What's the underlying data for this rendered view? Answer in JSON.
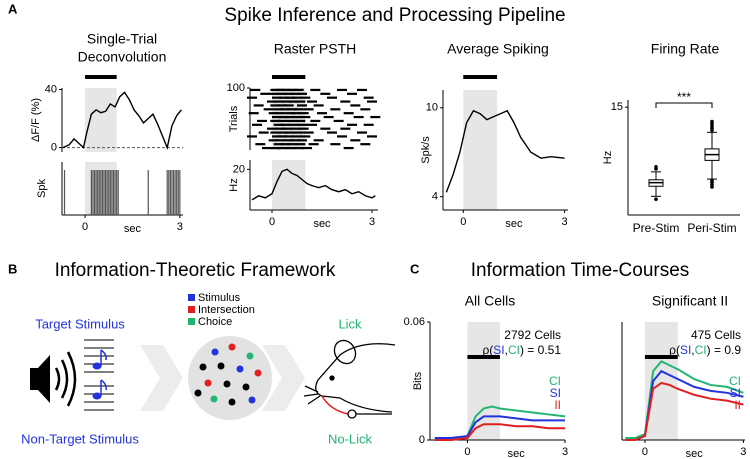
{
  "panel_labels": [
    "A",
    "B",
    "C"
  ],
  "section_titles": [
    "Spike Inference and Processing Pipeline",
    "Information-Theoretic Framework",
    "Information Time-Courses"
  ],
  "diagram": {
    "target": "Target Stimulus",
    "non_target": "Non-Target Stimulus",
    "legend": [
      "Stimulus",
      "Intersection",
      "Choice"
    ],
    "lick": "Lick",
    "no_lick": "No-Lick"
  },
  "chart_data": [
    {
      "type": "line",
      "title_lines": [
        "Single-Trial",
        "Deconvolution"
      ],
      "ylabel": "ΔF/F (%)",
      "xlim": [
        -0.73,
        3.1
      ],
      "ylim": [
        -3,
        41
      ],
      "yticks": [
        0,
        40
      ],
      "shade": [
        0,
        1
      ],
      "stim_bar": true,
      "zero_line": true,
      "x": [
        -0.7,
        -0.5,
        -0.35,
        -0.2,
        -0.05,
        0.05,
        0.2,
        0.35,
        0.5,
        0.65,
        0.8,
        0.95,
        1.1,
        1.25,
        1.4,
        1.55,
        1.7,
        1.85,
        2.0,
        2.15,
        2.3,
        2.45,
        2.6,
        2.75,
        2.9,
        3.05
      ],
      "series": [
        {
          "color": "#000000",
          "values": [
            0,
            2,
            6,
            3,
            0,
            10,
            23,
            26,
            24,
            25,
            30,
            28,
            35,
            38,
            33,
            26,
            22,
            17,
            20,
            23,
            16,
            8,
            0,
            15,
            22,
            26
          ]
        }
      ]
    },
    {
      "type": "raster",
      "ylabel": "Spk",
      "xlabel": "sec",
      "xlim": [
        -0.73,
        3.1
      ],
      "xticks": [
        0,
        3
      ],
      "shade": [
        0,
        1
      ],
      "spikes": [
        -0.65,
        0.2,
        0.25,
        0.3,
        0.35,
        0.4,
        0.45,
        0.5,
        0.55,
        0.6,
        0.65,
        0.7,
        0.75,
        0.8,
        0.85,
        0.9,
        0.95,
        1.0,
        1.05,
        2.0,
        2.6,
        2.65,
        2.7,
        2.75,
        2.8,
        2.85,
        2.9,
        2.95,
        3.0
      ]
    },
    {
      "type": "raster",
      "title": "Raster PSTH",
      "ylabel": "Trials",
      "xlim": [
        -0.66,
        3.18
      ],
      "ylim": [
        0,
        100
      ],
      "yticks": [
        100
      ],
      "shade": [
        0,
        1
      ],
      "stim_bar": true,
      "trials": [
        [
          -0.5,
          0.1,
          0.25,
          0.4,
          0.6,
          0.8,
          1.3,
          2.1,
          2.7
        ],
        [
          -0.2,
          0.05,
          0.3,
          0.5,
          0.7,
          0.9,
          1.6,
          2.4
        ],
        [
          -0.6,
          0.15,
          0.35,
          0.55,
          0.75,
          1.0,
          1.8,
          2.9
        ],
        [
          0.0,
          0.2,
          0.45,
          0.65,
          0.85,
          1.2,
          2.2,
          3.0
        ],
        [
          -0.4,
          0.1,
          0.3,
          0.5,
          0.9,
          1.4,
          2.5
        ],
        [
          -0.1,
          0.2,
          0.4,
          0.6,
          0.8,
          1.1,
          1.9,
          2.8
        ],
        [
          -0.55,
          0.05,
          0.25,
          0.55,
          0.7,
          0.95,
          1.5,
          2.3
        ],
        [
          0.15,
          0.35,
          0.5,
          0.75,
          1.0,
          1.7,
          2.6,
          3.1
        ],
        [
          -0.3,
          0.1,
          0.3,
          0.6,
          0.85,
          1.3,
          2.0
        ],
        [
          -0.45,
          0.2,
          0.4,
          0.65,
          0.9,
          1.2,
          2.4,
          2.9
        ],
        [
          0.0,
          0.25,
          0.45,
          0.7,
          0.95,
          1.6,
          2.2
        ],
        [
          -0.25,
          0.1,
          0.35,
          0.55,
          0.8,
          1.1,
          1.8,
          2.7
        ],
        [
          -0.6,
          0.15,
          0.3,
          0.5,
          0.75,
          1.0,
          2.1,
          3.0
        ],
        [
          0.05,
          0.25,
          0.5,
          0.7,
          0.9,
          1.4,
          2.5
        ],
        [
          -0.35,
          0.2,
          0.4,
          0.6,
          0.85,
          1.25,
          1.9,
          2.8
        ],
        [
          -0.15,
          0.1,
          0.3,
          0.55,
          0.8,
          1.05,
          2.3
        ]
      ]
    },
    {
      "type": "line",
      "ylabel": "Hz",
      "xlabel": "sec",
      "xlim": [
        -0.66,
        3.18
      ],
      "ylim": [
        0,
        24.6
      ],
      "yticks": [
        20
      ],
      "xticks": [
        0,
        3
      ],
      "shade": [
        0,
        1
      ],
      "x": [
        -0.6,
        -0.4,
        -0.2,
        0,
        0.15,
        0.3,
        0.45,
        0.6,
        0.75,
        0.9,
        1.05,
        1.2,
        1.4,
        1.6,
        1.8,
        2.0,
        2.2,
        2.4,
        2.6,
        2.8,
        3.0,
        3.1
      ],
      "series": [
        {
          "color": "#000000",
          "values": [
            5,
            7,
            6,
            8,
            14,
            19,
            20,
            18,
            17,
            15,
            13,
            12,
            11,
            12,
            10,
            9,
            10,
            8,
            9,
            7,
            6,
            7
          ]
        }
      ]
    },
    {
      "type": "line",
      "title": "Average Spiking",
      "ylabel": "Spk/s",
      "xlabel": "sec",
      "xlim": [
        -0.6,
        3.1
      ],
      "ylim": [
        3.1,
        11.2
      ],
      "yticks": [
        4,
        10
      ],
      "xticks": [
        0,
        3
      ],
      "shade": [
        0,
        1
      ],
      "stim_bar": true,
      "x": [
        -0.5,
        -0.3,
        -0.1,
        0.1,
        0.3,
        0.5,
        0.7,
        0.9,
        1.1,
        1.3,
        1.5,
        1.7,
        2.0,
        2.3,
        2.6,
        3.0
      ],
      "series": [
        {
          "color": "#000000",
          "values": [
            4.3,
            5.5,
            7.0,
            9.0,
            9.8,
            9.6,
            9.2,
            9.4,
            9.6,
            9.8,
            9.0,
            8.0,
            7.0,
            6.6,
            6.7,
            6.6
          ]
        }
      ]
    },
    {
      "type": "box",
      "title": "Firing Rate",
      "ylabel": "Hz",
      "ylim": [
        0,
        16
      ],
      "yticks": [
        15
      ],
      "categories": [
        "Pre-Stim",
        "Peri-Stim"
      ],
      "annotation": "***",
      "color": "#000000",
      "boxes": [
        {
          "min": 2.6,
          "q1": 4.0,
          "median": 4.5,
          "q3": 4.9,
          "max": 6.0,
          "outliers": [
            6.4,
            6.7,
            2.2
          ]
        },
        {
          "min": 5.0,
          "q1": 7.6,
          "median": 8.4,
          "q3": 9.2,
          "max": 11.5,
          "outliers": [
            11.8,
            12.1,
            12.4,
            12.7,
            13.0,
            4.8,
            4.5,
            4.2,
            3.9
          ]
        }
      ]
    },
    {
      "type": "line",
      "title": "All Cells",
      "ylabel": "Bits",
      "xlabel": "sec",
      "xlim": [
        -1.15,
        3
      ],
      "ylim": [
        0,
        0.06
      ],
      "yticks": [
        0,
        0.06
      ],
      "xticks": [
        0,
        3
      ],
      "shade": [
        0,
        1
      ],
      "stim_bar": true,
      "annotation": "2792 Cells",
      "correlation": [
        "ρ(",
        "SI",
        ",",
        "CI",
        ") = 0.51"
      ],
      "x": [
        -1,
        -0.5,
        0,
        0.25,
        0.5,
        0.75,
        1,
        1.5,
        2,
        2.5,
        3
      ],
      "series": [
        {
          "name": "CI",
          "color": "#22b573",
          "values": [
            0.001,
            0.001,
            0.002,
            0.012,
            0.016,
            0.017,
            0.016,
            0.015,
            0.014,
            0.013,
            0.012
          ]
        },
        {
          "name": "SI",
          "color": "#2233dd",
          "values": [
            0.001,
            0.001,
            0.002,
            0.009,
            0.012,
            0.012,
            0.012,
            0.011,
            0.01,
            0.01,
            0.01
          ]
        },
        {
          "name": "II",
          "color": "#e02020",
          "values": [
            0,
            0,
            0.001,
            0.006,
            0.008,
            0.008,
            0.008,
            0.007,
            0.007,
            0.006,
            0.006
          ]
        }
      ]
    },
    {
      "type": "line",
      "title": "Significant II",
      "xlabel": "sec",
      "xlim": [
        -0.7,
        3.05
      ],
      "ylim": [
        0,
        0.06
      ],
      "yticks": [],
      "xticks": [
        0,
        3
      ],
      "shade": [
        0,
        1
      ],
      "stim_bar": true,
      "annotation": "475  Cells",
      "correlation": [
        "ρ(",
        "SI",
        ",",
        "CI",
        ") = 0.9"
      ],
      "x": [
        -0.6,
        -0.3,
        0,
        0.25,
        0.5,
        0.75,
        1,
        1.5,
        2,
        2.5,
        3
      ],
      "series": [
        {
          "name": "CI",
          "color": "#22b573",
          "values": [
            0.001,
            0.001,
            0.003,
            0.035,
            0.04,
            0.038,
            0.036,
            0.031,
            0.028,
            0.027,
            0.024
          ]
        },
        {
          "name": "SI",
          "color": "#2233dd",
          "values": [
            0,
            0,
            0.002,
            0.03,
            0.035,
            0.033,
            0.031,
            0.027,
            0.025,
            0.024,
            0.022
          ]
        },
        {
          "name": "II",
          "color": "#e02020",
          "values": [
            0,
            0,
            0.002,
            0.026,
            0.029,
            0.028,
            0.026,
            0.023,
            0.021,
            0.02,
            0.018
          ]
        }
      ]
    }
  ]
}
